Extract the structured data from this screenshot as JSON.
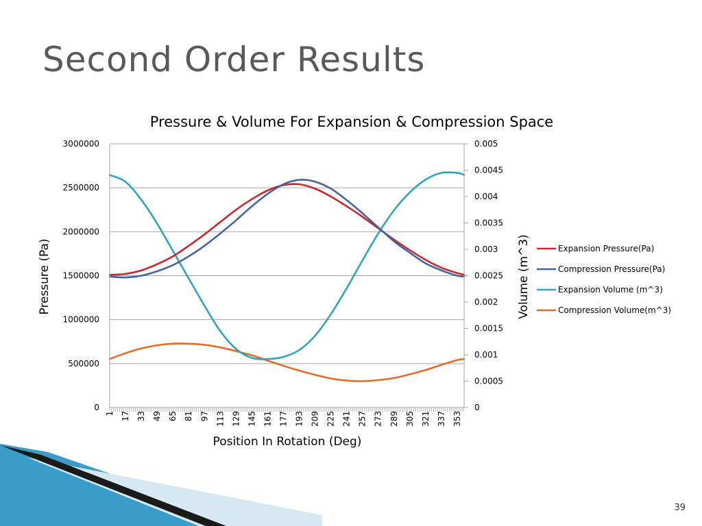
{
  "slide": {
    "title": "Second Order Results",
    "page_number": "39"
  },
  "colors": {
    "expansion_pressure": "#c8262b",
    "compression_pressure": "#41639e",
    "expansion_volume": "#2fa3bd",
    "compression_volume": "#e36c25",
    "gridline": "#a6a6a6",
    "title_text": "#595959",
    "decoration_dark": "#1a1a1a",
    "decoration_blue": "#3a9cc9",
    "decoration_light": "#d6e8f2"
  },
  "chart_data": {
    "type": "line",
    "title": "Pressure & Volume For Expansion & Compression Space",
    "xlabel": "Position In Rotation (Deg)",
    "ylabel_left": "Pressure (Pa)",
    "ylabel_right": "Volume (m^3)",
    "xlim": [
      1,
      360
    ],
    "ylim_left": [
      0,
      3000000
    ],
    "ylim_right": [
      0,
      0.005
    ],
    "x_tick_labels": [
      "1",
      "17",
      "33",
      "49",
      "65",
      "81",
      "97",
      "113",
      "129",
      "145",
      "161",
      "177",
      "193",
      "209",
      "225",
      "241",
      "257",
      "273",
      "289",
      "305",
      "321",
      "337",
      "353"
    ],
    "y_left_tick_labels": [
      "0",
      "500000",
      "1000000",
      "1500000",
      "2000000",
      "2500000",
      "3000000"
    ],
    "y_right_tick_labels": [
      "0",
      "0.0005",
      "0.001",
      "0.0015",
      "0.002",
      "0.0025",
      "0.003",
      "0.0035",
      "0.004",
      "0.0045",
      "0.005"
    ],
    "grid": true,
    "legend_position": "right",
    "x": [
      1,
      17,
      33,
      49,
      65,
      81,
      97,
      113,
      129,
      145,
      161,
      177,
      193,
      209,
      225,
      241,
      257,
      273,
      289,
      305,
      321,
      337,
      353,
      360
    ],
    "series": [
      {
        "name": "Expansion Pressure(Pa)",
        "axis": "left",
        "values": [
          1510000,
          1520000,
          1560000,
          1630000,
          1720000,
          1840000,
          1970000,
          2110000,
          2250000,
          2370000,
          2470000,
          2530000,
          2540000,
          2490000,
          2400000,
          2290000,
          2170000,
          2040000,
          1910000,
          1790000,
          1680000,
          1590000,
          1530000,
          1510000
        ]
      },
      {
        "name": "Compression Pressure(Pa)",
        "axis": "left",
        "values": [
          1490000,
          1480000,
          1500000,
          1550000,
          1620000,
          1720000,
          1840000,
          1980000,
          2130000,
          2290000,
          2430000,
          2540000,
          2590000,
          2570000,
          2490000,
          2360000,
          2210000,
          2050000,
          1890000,
          1760000,
          1640000,
          1560000,
          1500000,
          1490000
        ]
      },
      {
        "name": "Expansion Volume (m^3)",
        "axis": "right",
        "values": [
          0.00441,
          0.00428,
          0.00394,
          0.00349,
          0.00297,
          0.00245,
          0.00193,
          0.00145,
          0.00111,
          0.00094,
          0.00092,
          0.00096,
          0.00109,
          0.00136,
          0.00177,
          0.00226,
          0.00279,
          0.0033,
          0.00374,
          0.00408,
          0.00432,
          0.00445,
          0.00445,
          0.00441
        ]
      },
      {
        "name": "Compression Volume(m^3)",
        "axis": "right",
        "values": [
          0.00092,
          0.00103,
          0.00112,
          0.00118,
          0.00121,
          0.00121,
          0.00119,
          0.00114,
          0.00107,
          0.00099,
          0.00089,
          0.00079,
          0.0007,
          0.00062,
          0.00055,
          0.00051,
          0.0005,
          0.00052,
          0.00056,
          0.00063,
          0.00071,
          0.00081,
          0.0009,
          0.00092
        ]
      }
    ]
  }
}
